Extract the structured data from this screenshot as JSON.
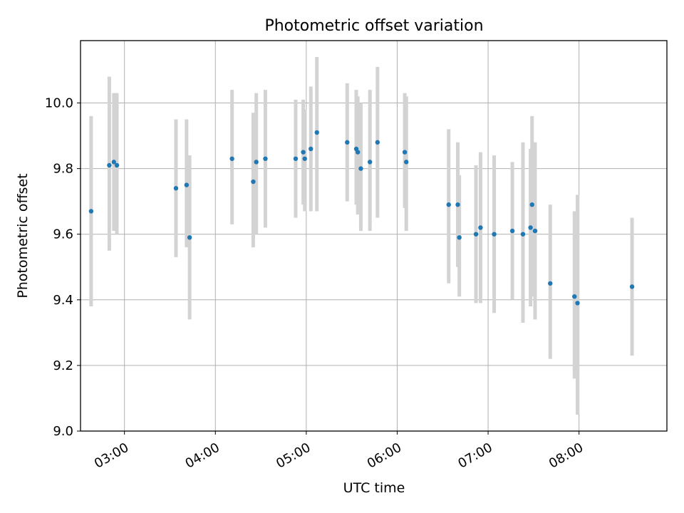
{
  "chart_data": {
    "type": "scatter",
    "title": "Photometric offset variation",
    "xlabel": "UTC time",
    "ylabel": "Photometric offset",
    "xlim": [
      "02:31",
      "08:58"
    ],
    "ylim": [
      9.0,
      10.19
    ],
    "x_ticks": [
      "03:00",
      "04:00",
      "05:00",
      "06:00",
      "07:00",
      "08:00"
    ],
    "y_ticks": [
      "9.0",
      "9.2",
      "9.4",
      "9.6",
      "9.8",
      "10.0"
    ],
    "grid": true,
    "colors": {
      "point": "#1f77b4",
      "errorbar": "#d3d3d3",
      "grid": "#b0b0b0"
    },
    "points": [
      {
        "x": "02:38",
        "y": 9.67,
        "lo": 9.38,
        "hi": 9.96
      },
      {
        "x": "02:50",
        "y": 9.81,
        "lo": 9.55,
        "hi": 10.08
      },
      {
        "x": "02:53",
        "y": 9.82,
        "lo": 9.61,
        "hi": 10.03
      },
      {
        "x": "02:55",
        "y": 9.81,
        "lo": 9.6,
        "hi": 10.03
      },
      {
        "x": "03:34",
        "y": 9.74,
        "lo": 9.53,
        "hi": 9.95
      },
      {
        "x": "03:41",
        "y": 9.75,
        "lo": 9.56,
        "hi": 9.95
      },
      {
        "x": "03:43",
        "y": 9.59,
        "lo": 9.34,
        "hi": 9.84
      },
      {
        "x": "04:11",
        "y": 9.83,
        "lo": 9.63,
        "hi": 10.04
      },
      {
        "x": "04:25",
        "y": 9.76,
        "lo": 9.56,
        "hi": 9.97
      },
      {
        "x": "04:27",
        "y": 9.82,
        "lo": 9.6,
        "hi": 10.03
      },
      {
        "x": "04:33",
        "y": 9.83,
        "lo": 9.62,
        "hi": 10.04
      },
      {
        "x": "04:53",
        "y": 9.83,
        "lo": 9.65,
        "hi": 10.01
      },
      {
        "x": "04:58",
        "y": 9.85,
        "lo": 9.69,
        "hi": 10.01
      },
      {
        "x": "04:59",
        "y": 9.83,
        "lo": 9.67,
        "hi": 9.98
      },
      {
        "x": "05:03",
        "y": 9.86,
        "lo": 9.67,
        "hi": 10.05
      },
      {
        "x": "05:07",
        "y": 9.91,
        "lo": 9.67,
        "hi": 10.14
      },
      {
        "x": "05:27",
        "y": 9.88,
        "lo": 9.7,
        "hi": 10.06
      },
      {
        "x": "05:33",
        "y": 9.86,
        "lo": 9.69,
        "hi": 10.04
      },
      {
        "x": "05:34",
        "y": 9.85,
        "lo": 9.66,
        "hi": 10.02
      },
      {
        "x": "05:36",
        "y": 9.8,
        "lo": 9.61,
        "hi": 10.0
      },
      {
        "x": "05:42",
        "y": 9.82,
        "lo": 9.61,
        "hi": 10.04
      },
      {
        "x": "05:47",
        "y": 9.88,
        "lo": 9.65,
        "hi": 10.11
      },
      {
        "x": "06:05",
        "y": 9.85,
        "lo": 9.68,
        "hi": 10.03
      },
      {
        "x": "06:06",
        "y": 9.82,
        "lo": 9.61,
        "hi": 10.02
      },
      {
        "x": "06:34",
        "y": 9.69,
        "lo": 9.45,
        "hi": 9.92
      },
      {
        "x": "06:40",
        "y": 9.69,
        "lo": 9.5,
        "hi": 9.88
      },
      {
        "x": "06:41",
        "y": 9.59,
        "lo": 9.41,
        "hi": 9.78
      },
      {
        "x": "06:52",
        "y": 9.6,
        "lo": 9.39,
        "hi": 9.81
      },
      {
        "x": "06:55",
        "y": 9.62,
        "lo": 9.39,
        "hi": 9.85
      },
      {
        "x": "07:04",
        "y": 9.6,
        "lo": 9.36,
        "hi": 9.84
      },
      {
        "x": "07:16",
        "y": 9.61,
        "lo": 9.4,
        "hi": 9.82
      },
      {
        "x": "07:23",
        "y": 9.6,
        "lo": 9.33,
        "hi": 9.88
      },
      {
        "x": "07:28",
        "y": 9.62,
        "lo": 9.38,
        "hi": 9.86
      },
      {
        "x": "07:29",
        "y": 9.69,
        "lo": 9.41,
        "hi": 9.96
      },
      {
        "x": "07:31",
        "y": 9.61,
        "lo": 9.34,
        "hi": 9.88
      },
      {
        "x": "07:41",
        "y": 9.45,
        "lo": 9.22,
        "hi": 9.69
      },
      {
        "x": "07:57",
        "y": 9.41,
        "lo": 9.16,
        "hi": 9.67
      },
      {
        "x": "07:59",
        "y": 9.39,
        "lo": 9.05,
        "hi": 9.72
      },
      {
        "x": "08:35",
        "y": 9.44,
        "lo": 9.23,
        "hi": 9.65
      }
    ]
  }
}
